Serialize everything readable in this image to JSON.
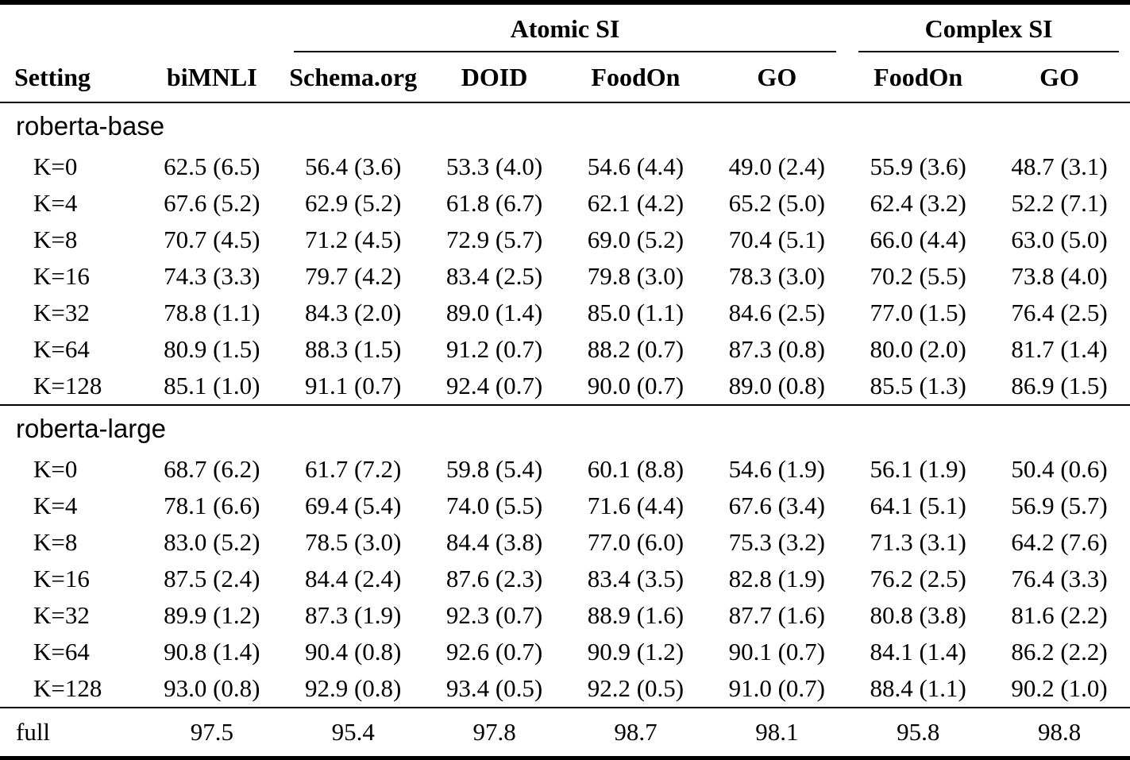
{
  "table": {
    "group_headers": [
      {
        "label": "Atomic SI"
      },
      {
        "label": "Complex SI"
      }
    ],
    "columns": [
      "Setting",
      "biMNLI",
      "Schema.org",
      "DOID",
      "FoodOn",
      "GO",
      "FoodOn",
      "GO"
    ],
    "sections": [
      {
        "label": "roberta-base",
        "rows": [
          {
            "setting": "K=0",
            "values": [
              "62.5 (6.5)",
              "56.4 (3.6)",
              "53.3 (4.0)",
              "54.6 (4.4)",
              "49.0 (2.4)",
              "55.9 (3.6)",
              "48.7 (3.1)"
            ]
          },
          {
            "setting": "K=4",
            "values": [
              "67.6 (5.2)",
              "62.9 (5.2)",
              "61.8 (6.7)",
              "62.1 (4.2)",
              "65.2 (5.0)",
              "62.4 (3.2)",
              "52.2 (7.1)"
            ]
          },
          {
            "setting": "K=8",
            "values": [
              "70.7 (4.5)",
              "71.2 (4.5)",
              "72.9 (5.7)",
              "69.0 (5.2)",
              "70.4 (5.1)",
              "66.0 (4.4)",
              "63.0 (5.0)"
            ]
          },
          {
            "setting": "K=16",
            "values": [
              "74.3 (3.3)",
              "79.7 (4.2)",
              "83.4 (2.5)",
              "79.8 (3.0)",
              "78.3 (3.0)",
              "70.2 (5.5)",
              "73.8 (4.0)"
            ]
          },
          {
            "setting": "K=32",
            "values": [
              "78.8 (1.1)",
              "84.3 (2.0)",
              "89.0 (1.4)",
              "85.0 (1.1)",
              "84.6 (2.5)",
              "77.0 (1.5)",
              "76.4 (2.5)"
            ]
          },
          {
            "setting": "K=64",
            "values": [
              "80.9 (1.5)",
              "88.3 (1.5)",
              "91.2 (0.7)",
              "88.2 (0.7)",
              "87.3 (0.8)",
              "80.0 (2.0)",
              "81.7 (1.4)"
            ]
          },
          {
            "setting": "K=128",
            "values": [
              "85.1 (1.0)",
              "91.1 (0.7)",
              "92.4 (0.7)",
              "90.0 (0.7)",
              "89.0 (0.8)",
              "85.5 (1.3)",
              "86.9 (1.5)"
            ]
          }
        ]
      },
      {
        "label": "roberta-large",
        "rows": [
          {
            "setting": "K=0",
            "values": [
              "68.7 (6.2)",
              "61.7 (7.2)",
              "59.8 (5.4)",
              "60.1 (8.8)",
              "54.6 (1.9)",
              "56.1 (1.9)",
              "50.4 (0.6)"
            ]
          },
          {
            "setting": "K=4",
            "values": [
              "78.1 (6.6)",
              "69.4 (5.4)",
              "74.0 (5.5)",
              "71.6 (4.4)",
              "67.6 (3.4)",
              "64.1 (5.1)",
              "56.9 (5.7)"
            ]
          },
          {
            "setting": "K=8",
            "values": [
              "83.0 (5.2)",
              "78.5 (3.0)",
              "84.4 (3.8)",
              "77.0 (6.0)",
              "75.3 (3.2)",
              "71.3 (3.1)",
              "64.2 (7.6)"
            ]
          },
          {
            "setting": "K=16",
            "values": [
              "87.5 (2.4)",
              "84.4 (2.4)",
              "87.6 (2.3)",
              "83.4 (3.5)",
              "82.8 (1.9)",
              "76.2 (2.5)",
              "76.4 (3.3)"
            ]
          },
          {
            "setting": "K=32",
            "values": [
              "89.9 (1.2)",
              "87.3 (1.9)",
              "92.3 (0.7)",
              "88.9 (1.6)",
              "87.7 (1.6)",
              "80.8 (3.8)",
              "81.6 (2.2)"
            ]
          },
          {
            "setting": "K=64",
            "values": [
              "90.8 (1.4)",
              "90.4 (0.8)",
              "92.6 (0.7)",
              "90.9 (1.2)",
              "90.1 (0.7)",
              "84.1 (1.4)",
              "86.2 (2.2)"
            ]
          },
          {
            "setting": "K=128",
            "values": [
              "93.0 (0.8)",
              "92.9 (0.8)",
              "93.4 (0.5)",
              "92.2 (0.5)",
              "91.0 (0.7)",
              "88.4 (1.1)",
              "90.2 (1.0)"
            ]
          }
        ]
      }
    ],
    "footer": {
      "setting": "full",
      "values": [
        "97.5",
        "95.4",
        "97.8",
        "98.7",
        "98.1",
        "95.8",
        "98.8"
      ]
    }
  }
}
